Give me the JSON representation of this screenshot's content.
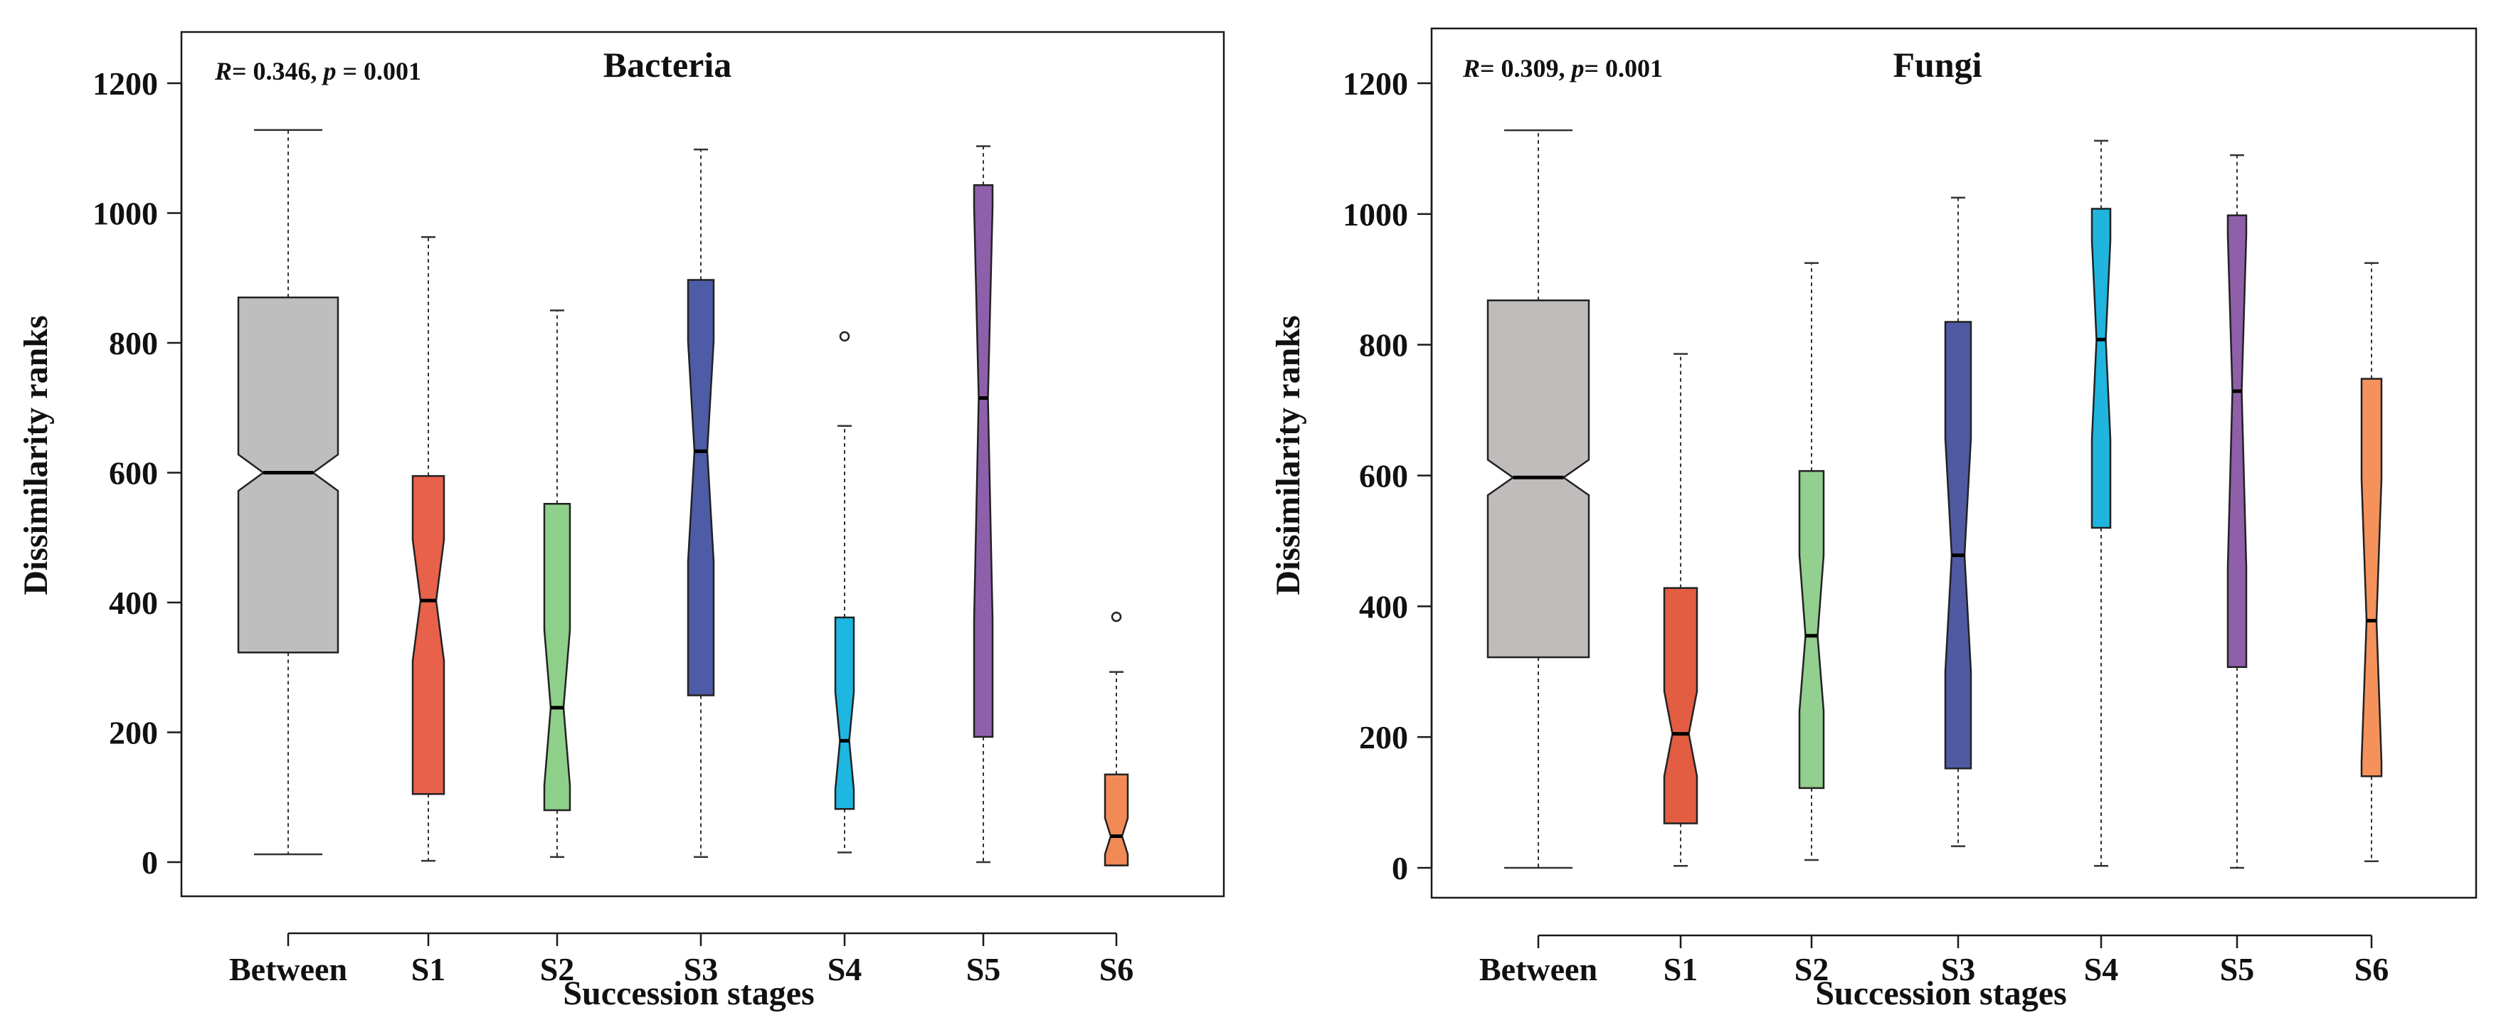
{
  "chart_data": [
    {
      "type": "box",
      "panel": "Bacteria",
      "title": "Bacteria",
      "stat": {
        "r_label": "R",
        "r_value": "0.346",
        "p_label": "p",
        "p_value": "0.001"
      },
      "xlabel": "Succession stages",
      "ylabel": "Dissimilarity ranks",
      "ylim": [
        -50,
        1275
      ],
      "yticks": [
        0,
        200,
        400,
        600,
        800,
        1000,
        1200
      ],
      "categories": [
        "Between",
        "S1",
        "S2",
        "S3",
        "S4",
        "S5",
        "S6"
      ],
      "boxes": [
        {
          "name": "Between",
          "color": "#bebebe",
          "min": 12,
          "q1": 323,
          "median": 600,
          "q3": 870,
          "max": 1128,
          "notch_lo": 572,
          "notch_hi": 628,
          "outliers": []
        },
        {
          "name": "S1",
          "color": "#e8614a",
          "min": 2,
          "q1": 105,
          "median": 403,
          "q3": 595,
          "max": 963,
          "notch_lo": 310,
          "notch_hi": 497,
          "outliers": []
        },
        {
          "name": "S2",
          "color": "#8ed08a",
          "min": 8,
          "q1": 80,
          "median": 238,
          "q3": 552,
          "max": 850,
          "notch_lo": 118,
          "notch_hi": 358,
          "outliers": []
        },
        {
          "name": "S3",
          "color": "#4e5ba6",
          "min": 8,
          "q1": 257,
          "median": 633,
          "q3": 897,
          "max": 1098,
          "notch_lo": 463,
          "notch_hi": 803,
          "outliers": []
        },
        {
          "name": "S4",
          "color": "#1db7e2",
          "min": 15,
          "q1": 82,
          "median": 187,
          "q3": 377,
          "max": 672,
          "notch_lo": 112,
          "notch_hi": 262,
          "outliers": [
            810
          ]
        },
        {
          "name": "S5",
          "color": "#8e60ac",
          "min": 0,
          "q1": 193,
          "median": 715,
          "q3": 1043,
          "max": 1103,
          "notch_lo": 373,
          "notch_hi": 1010,
          "outliers": []
        },
        {
          "name": "S6",
          "color": "#f28a55",
          "min": -5,
          "q1": -5,
          "median": 40,
          "q3": 135,
          "max": 293,
          "notch_lo": 12,
          "notch_hi": 68,
          "outliers": [
            378
          ]
        }
      ]
    },
    {
      "type": "box",
      "panel": "Fungi",
      "title": "Fungi",
      "stat": {
        "r_label": "R",
        "r_value": "0.309",
        "p_label": "p",
        "p_value": "0.001"
      },
      "xlabel": "Succession stages",
      "ylabel": "Dissimilarity ranks",
      "ylim": [
        -50,
        1275
      ],
      "yticks": [
        0,
        200,
        400,
        600,
        800,
        1000,
        1200
      ],
      "categories": [
        "Between",
        "S1",
        "S2",
        "S3",
        "S4",
        "S5",
        "S6"
      ],
      "boxes": [
        {
          "name": "Between",
          "color": "#c0bcbb",
          "min": 0,
          "q1": 322,
          "median": 597,
          "q3": 868,
          "max": 1128,
          "notch_lo": 570,
          "notch_hi": 624,
          "outliers": []
        },
        {
          "name": "S1",
          "color": "#e35d42",
          "min": 3,
          "q1": 68,
          "median": 205,
          "q3": 428,
          "max": 786,
          "notch_lo": 140,
          "notch_hi": 270,
          "outliers": []
        },
        {
          "name": "S2",
          "color": "#93cf8f",
          "min": 12,
          "q1": 122,
          "median": 355,
          "q3": 607,
          "max": 925,
          "notch_lo": 240,
          "notch_hi": 478,
          "outliers": []
        },
        {
          "name": "S3",
          "color": "#4f5aa3",
          "min": 33,
          "q1": 152,
          "median": 478,
          "q3": 835,
          "max": 1025,
          "notch_lo": 300,
          "notch_hi": 657,
          "outliers": []
        },
        {
          "name": "S4",
          "color": "#20b5df",
          "min": 3,
          "q1": 520,
          "median": 808,
          "q3": 1008,
          "max": 1112,
          "notch_lo": 655,
          "notch_hi": 960,
          "outliers": []
        },
        {
          "name": "S5",
          "color": "#8f5fa9",
          "min": 0,
          "q1": 307,
          "median": 729,
          "q3": 998,
          "max": 1090,
          "notch_lo": 460,
          "notch_hi": 968,
          "outliers": []
        },
        {
          "name": "S6",
          "color": "#f5925c",
          "min": 10,
          "q1": 140,
          "median": 378,
          "q3": 748,
          "max": 925,
          "notch_lo": 162,
          "notch_hi": 595,
          "outliers": []
        }
      ]
    }
  ]
}
